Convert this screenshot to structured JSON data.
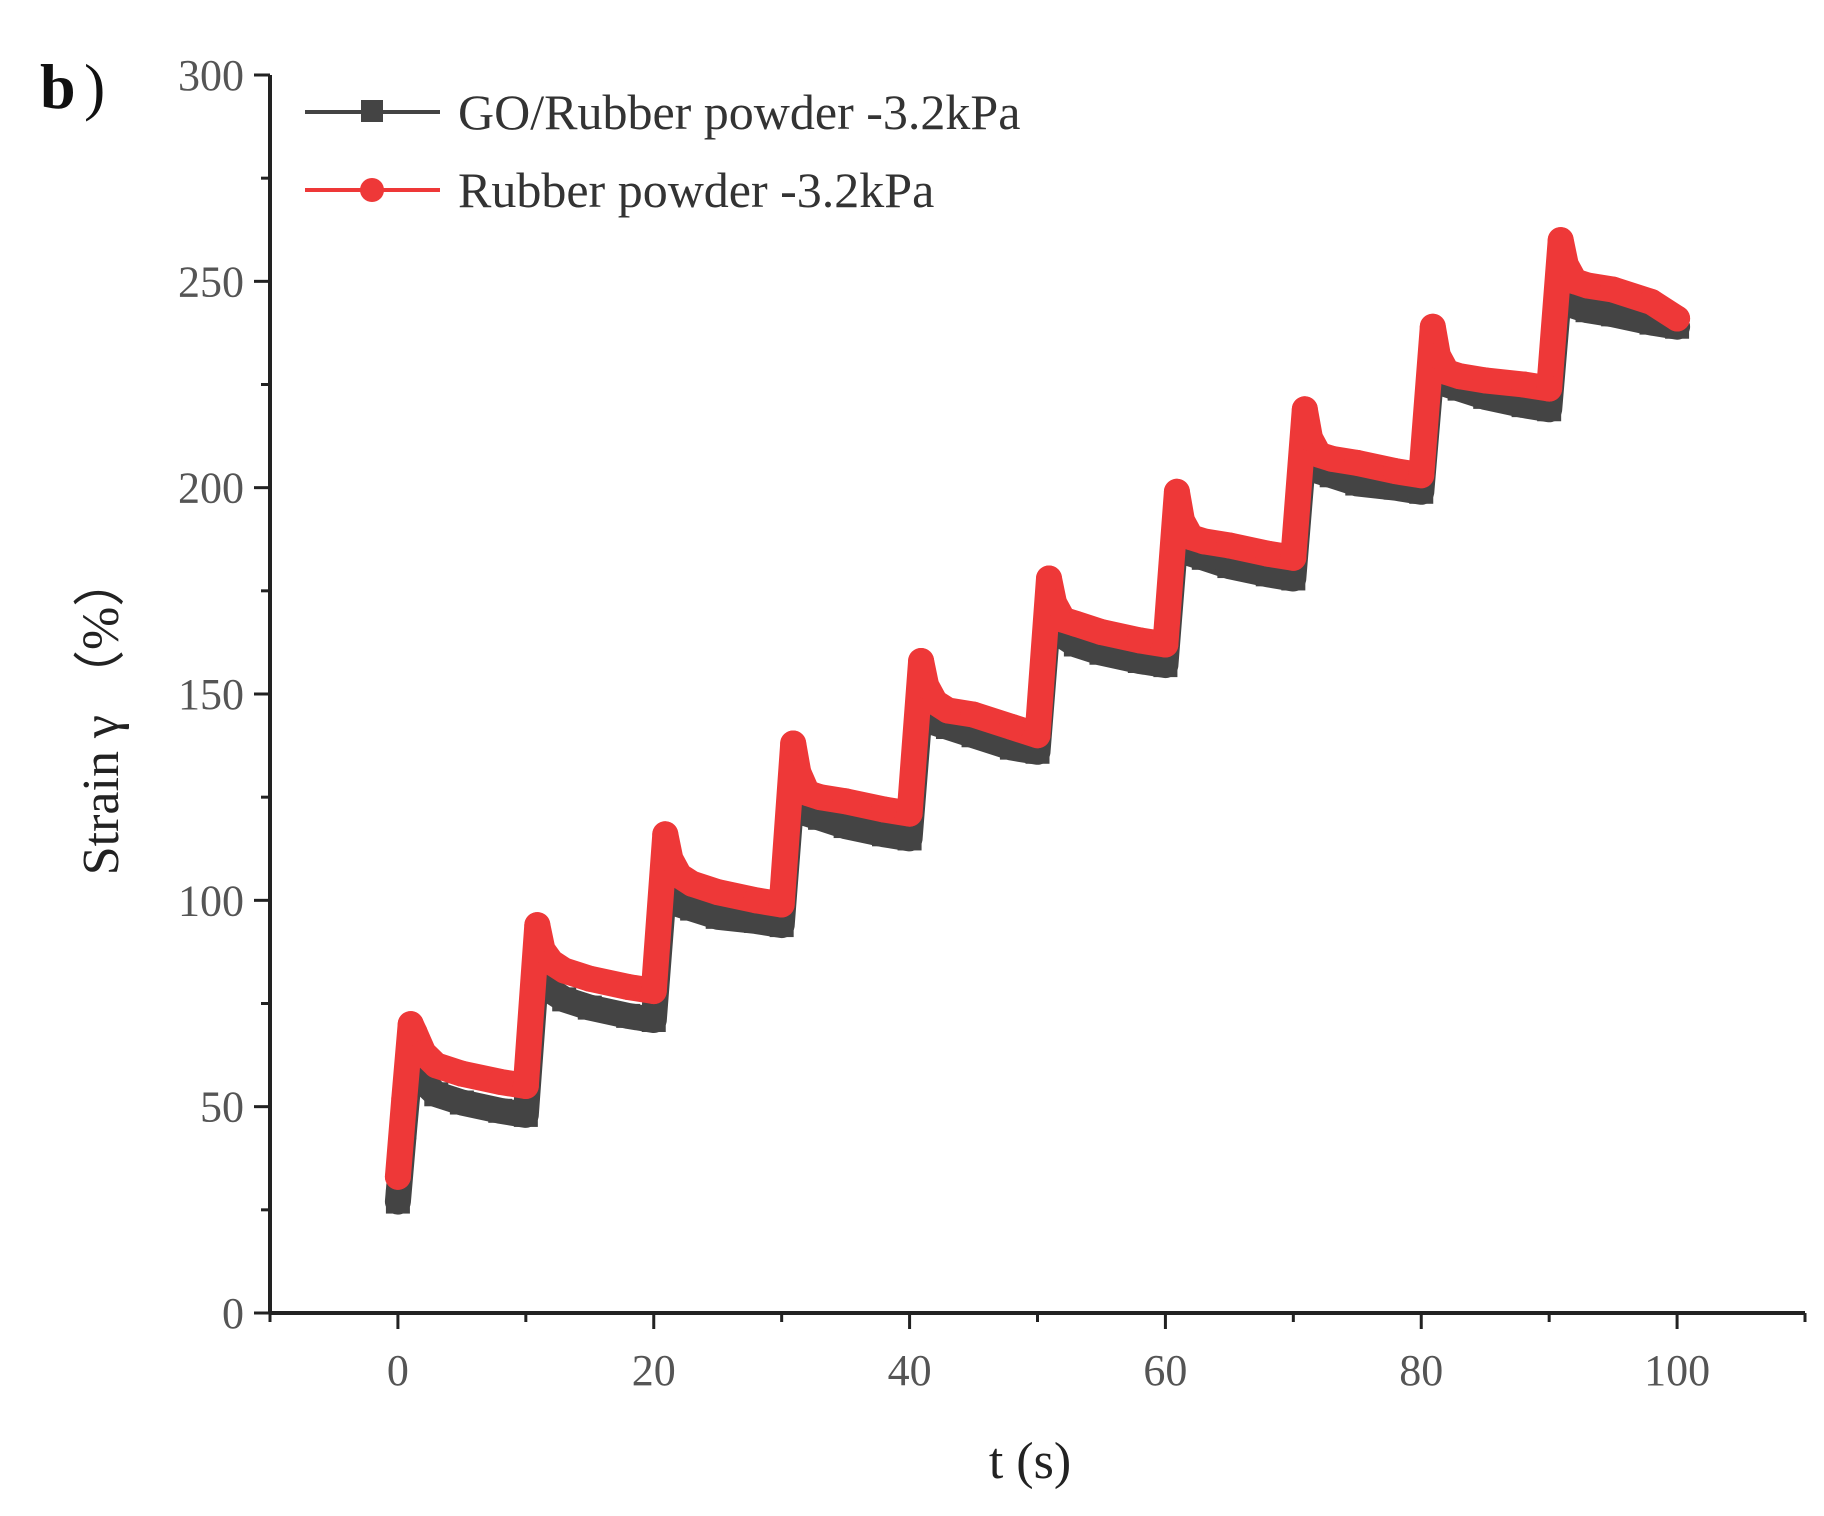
{
  "chart_data": {
    "type": "line",
    "panel_label": "b",
    "panel_paren": ")",
    "xlabel": "t (s)",
    "ylabel": "Strain γ （%）",
    "xlim": [
      -10,
      110
    ],
    "ylim": [
      0,
      300
    ],
    "xticks": [
      0,
      20,
      40,
      60,
      80,
      100
    ],
    "yticks": [
      0,
      50,
      100,
      150,
      200,
      250,
      300
    ],
    "grid": false,
    "legend_position": "top-left",
    "series": [
      {
        "name": "GO/Rubber powder -3.2kPa",
        "color": "#444444",
        "marker": "square",
        "x": [
          0,
          0.5,
          1,
          1.3,
          2,
          3,
          5,
          8,
          10,
          10.9,
          11.3,
          12,
          13,
          15,
          18,
          20,
          20.9,
          21.3,
          22,
          23,
          25,
          28,
          30,
          30.9,
          31.3,
          32,
          33,
          35,
          38,
          40,
          40.9,
          41.3,
          42,
          43,
          45,
          48,
          50,
          50.9,
          51.3,
          52,
          53,
          55,
          58,
          60,
          60.9,
          61.3,
          62,
          63,
          65,
          68,
          70,
          70.9,
          71.3,
          72,
          73,
          75,
          78,
          80,
          80.9,
          81.3,
          82,
          83,
          85,
          88,
          90,
          90.9,
          91.3,
          92,
          93,
          95,
          98,
          100
        ],
        "values": [
          27,
          45,
          62,
          60,
          56,
          53,
          51,
          49,
          48,
          86,
          80,
          78,
          76,
          74,
          72,
          71,
          107,
          101,
          99,
          98,
          96,
          95,
          94,
          130,
          124,
          121,
          120,
          118,
          116,
          115,
          150,
          145,
          143,
          142,
          140,
          137,
          136,
          171,
          166,
          164,
          162,
          160,
          158,
          157,
          192,
          186,
          184,
          183,
          181,
          179,
          178,
          212,
          206,
          204,
          203,
          201,
          200,
          199,
          232,
          226,
          225,
          224,
          222,
          220,
          219,
          252,
          246,
          244,
          243,
          242,
          240,
          239
        ]
      },
      {
        "name": "Rubber powder -3.2kPa",
        "color": "#ee3838",
        "marker": "circle",
        "x": [
          0,
          0.5,
          1,
          1.3,
          2,
          3,
          5,
          8,
          10,
          10.9,
          11.3,
          12,
          13,
          15,
          18,
          20,
          20.9,
          21.3,
          22,
          23,
          25,
          28,
          30,
          30.9,
          31.3,
          32,
          33,
          35,
          38,
          40,
          40.9,
          41.3,
          42,
          43,
          45,
          48,
          50,
          50.9,
          51.3,
          52,
          53,
          55,
          58,
          60,
          60.9,
          61.3,
          62,
          63,
          65,
          68,
          70,
          70.9,
          71.3,
          72,
          73,
          75,
          78,
          80,
          80.9,
          81.3,
          82,
          83,
          85,
          88,
          90,
          90.9,
          91.3,
          92,
          93,
          95,
          98,
          100
        ],
        "values": [
          33,
          52,
          70,
          68,
          63,
          60,
          58,
          56,
          55,
          94,
          88,
          85,
          83,
          81,
          79,
          78,
          116,
          110,
          106,
          104,
          102,
          100,
          99,
          138,
          131,
          126,
          125,
          124,
          122,
          121,
          158,
          152,
          148,
          146,
          145,
          142,
          140,
          178,
          172,
          168,
          167,
          165,
          163,
          162,
          199,
          192,
          188,
          187,
          186,
          184,
          183,
          219,
          212,
          208,
          207,
          206,
          204,
          203,
          239,
          232,
          228,
          227,
          226,
          225,
          224,
          260,
          254,
          250,
          249,
          248,
          245,
          241
        ]
      }
    ]
  }
}
